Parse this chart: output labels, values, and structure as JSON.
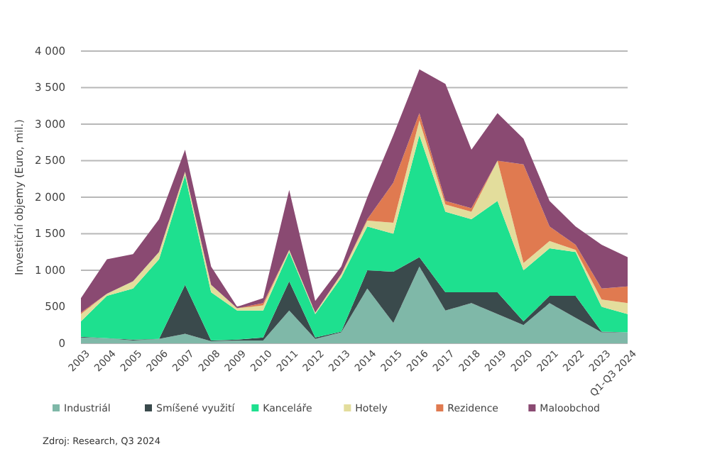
{
  "chart_data": {
    "type": "area",
    "stacked": true,
    "ylabel": "Investiční objemy (Euro, mil.)",
    "categories": [
      "2003",
      "2004",
      "2005",
      "2006",
      "2007",
      "2008",
      "2009",
      "2010",
      "2011",
      "2012",
      "2013",
      "2014",
      "2015",
      "2016",
      "2017",
      "2018",
      "2019",
      "2020",
      "2021",
      "2022",
      "2023",
      "Q1-Q3 2024"
    ],
    "series": [
      {
        "name": "Industriál",
        "color": "#7fb8a8",
        "values": [
          80,
          70,
          40,
          60,
          130,
          30,
          40,
          40,
          450,
          60,
          150,
          750,
          280,
          1050,
          450,
          550,
          400,
          250,
          550,
          350,
          150,
          150
        ]
      },
      {
        "name": "Smíšené využití",
        "color": "#3a4a4c",
        "values": [
          10,
          0,
          10,
          0,
          670,
          10,
          10,
          40,
          400,
          20,
          10,
          250,
          700,
          130,
          250,
          150,
          300,
          50,
          100,
          300,
          10,
          0
        ]
      },
      {
        "name": "Kanceláře",
        "color": "#1ee08f",
        "values": [
          210,
          580,
          700,
          1090,
          1500,
          660,
          400,
          370,
          400,
          320,
          740,
          600,
          520,
          1670,
          1100,
          1000,
          1250,
          700,
          650,
          600,
          340,
          250
        ]
      },
      {
        "name": "Hotely",
        "color": "#e3dd9c",
        "values": [
          100,
          30,
          100,
          100,
          50,
          100,
          30,
          70,
          30,
          20,
          50,
          80,
          150,
          200,
          100,
          100,
          550,
          100,
          100,
          30,
          100,
          150
        ]
      },
      {
        "name": "Rezidence",
        "color": "#e07a50",
        "values": [
          20,
          0,
          0,
          0,
          0,
          0,
          0,
          30,
          0,
          0,
          0,
          20,
          550,
          100,
          50,
          50,
          0,
          1350,
          200,
          70,
          150,
          230
        ]
      },
      {
        "name": "Maloobchod",
        "color": "#8a4a72",
        "values": [
          200,
          470,
          370,
          450,
          300,
          250,
          20,
          70,
          820,
          160,
          100,
          300,
          650,
          600,
          1600,
          800,
          650,
          350,
          350,
          250,
          600,
          400
        ]
      }
    ],
    "ylim": [
      0,
      4000
    ],
    "yticks": [
      {
        "value": 0,
        "label": "0"
      },
      {
        "value": 500,
        "label": "500"
      },
      {
        "value": 1000,
        "label": "1 000"
      },
      {
        "value": 1500,
        "label": "1 500"
      },
      {
        "value": 2000,
        "label": "2 000"
      },
      {
        "value": 2500,
        "label": "2 500"
      },
      {
        "value": 3000,
        "label": "3 000"
      },
      {
        "value": 3500,
        "label": "3 500"
      },
      {
        "value": 4000,
        "label": "4 000"
      }
    ],
    "grid": "y",
    "legend": "bottom",
    "annotations": [
      "Zdroj: Research, Q3 2024"
    ]
  }
}
